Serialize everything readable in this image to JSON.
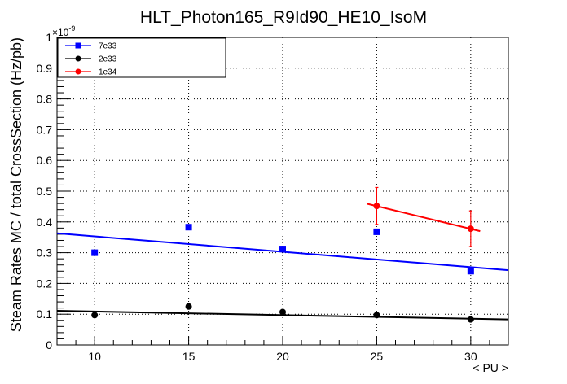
{
  "chart_data": {
    "type": "scatter",
    "title": "HLT_Photon165_R9Id90_HE10_IsoM",
    "xlabel": "< PU >",
    "ylabel": "Steam Rates MC / total CrossSection (Hz/pb)",
    "y_exponent": "×10",
    "y_exponent_power": "-9",
    "xlim": [
      8,
      32
    ],
    "ylim": [
      0,
      1
    ],
    "x_ticks": [
      10,
      15,
      20,
      25,
      30
    ],
    "x_tick_labels": [
      "10",
      "15",
      "20",
      "25",
      "30"
    ],
    "y_ticks": [
      0,
      0.1,
      0.2,
      0.3,
      0.4,
      0.5,
      0.6,
      0.7,
      0.8,
      0.9,
      1
    ],
    "y_tick_labels": [
      "0",
      "0.1",
      "0.2",
      "0.3",
      "0.4",
      "0.5",
      "0.6",
      "0.7",
      "0.8",
      "0.9",
      "1"
    ],
    "grid": true,
    "legend_position": "top-left",
    "series": [
      {
        "name": "7e33",
        "color": "#0000ff",
        "marker": "square",
        "x": [
          10,
          15,
          20,
          25,
          30
        ],
        "y": [
          0.3,
          0.383,
          0.312,
          0.368,
          0.24
        ],
        "fit": {
          "x": [
            8,
            32
          ],
          "y": [
            0.363,
            0.243
          ]
        }
      },
      {
        "name": "2e33",
        "color": "#000000",
        "marker": "circle",
        "x": [
          10,
          15,
          20,
          25,
          30
        ],
        "y": [
          0.097,
          0.125,
          0.107,
          0.097,
          0.083
        ],
        "fit": {
          "x": [
            8,
            32
          ],
          "y": [
            0.111,
            0.083
          ]
        }
      },
      {
        "name": "1e34",
        "color": "#ff0000",
        "marker": "circle",
        "x": [
          25,
          30
        ],
        "y": [
          0.452,
          0.378
        ],
        "yerr": [
          0.06,
          0.058
        ],
        "xerr": [
          0,
          0
        ],
        "fit": {
          "x": [
            24.5,
            30.5
          ],
          "y": [
            0.459,
            0.37
          ]
        }
      }
    ]
  }
}
